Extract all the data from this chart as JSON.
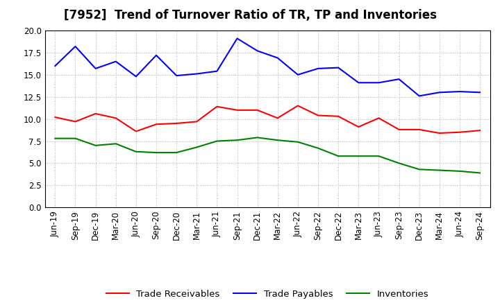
{
  "title": "[7952]  Trend of Turnover Ratio of TR, TP and Inventories",
  "x_labels": [
    "Jun-19",
    "Sep-19",
    "Dec-19",
    "Mar-20",
    "Jun-20",
    "Sep-20",
    "Dec-20",
    "Mar-21",
    "Jun-21",
    "Sep-21",
    "Dec-21",
    "Mar-22",
    "Jun-22",
    "Sep-22",
    "Dec-22",
    "Mar-23",
    "Jun-23",
    "Sep-23",
    "Dec-23",
    "Mar-24",
    "Jun-24",
    "Sep-24"
  ],
  "trade_receivables": [
    10.2,
    9.7,
    10.6,
    10.1,
    8.6,
    9.4,
    9.5,
    9.7,
    11.4,
    11.0,
    11.0,
    10.1,
    11.5,
    10.4,
    10.3,
    9.1,
    10.1,
    8.8,
    8.8,
    8.4,
    8.5,
    8.7
  ],
  "trade_payables": [
    16.0,
    18.2,
    15.7,
    16.5,
    14.8,
    17.2,
    14.9,
    15.1,
    15.4,
    19.1,
    17.7,
    16.9,
    15.0,
    15.7,
    15.8,
    14.1,
    14.1,
    14.5,
    12.6,
    13.0,
    13.1,
    13.0
  ],
  "inventories": [
    7.8,
    7.8,
    7.0,
    7.2,
    6.3,
    6.2,
    6.2,
    6.8,
    7.5,
    7.6,
    7.9,
    7.6,
    7.4,
    6.7,
    5.8,
    5.8,
    5.8,
    5.0,
    4.3,
    4.2,
    4.1,
    3.9
  ],
  "ylim": [
    0.0,
    20.0
  ],
  "yticks": [
    0.0,
    2.5,
    5.0,
    7.5,
    10.0,
    12.5,
    15.0,
    17.5,
    20.0
  ],
  "color_tr": "#FF0000",
  "color_tp": "#0000FF",
  "color_inv": "#008000",
  "legend_labels": [
    "Trade Receivables",
    "Trade Payables",
    "Inventories"
  ],
  "background_color": "#FFFFFF",
  "plot_bg_color": "#FFFFFF",
  "grid_color": "#AAAAAA",
  "title_fontsize": 12,
  "tick_fontsize": 8.5,
  "legend_fontsize": 9.5
}
